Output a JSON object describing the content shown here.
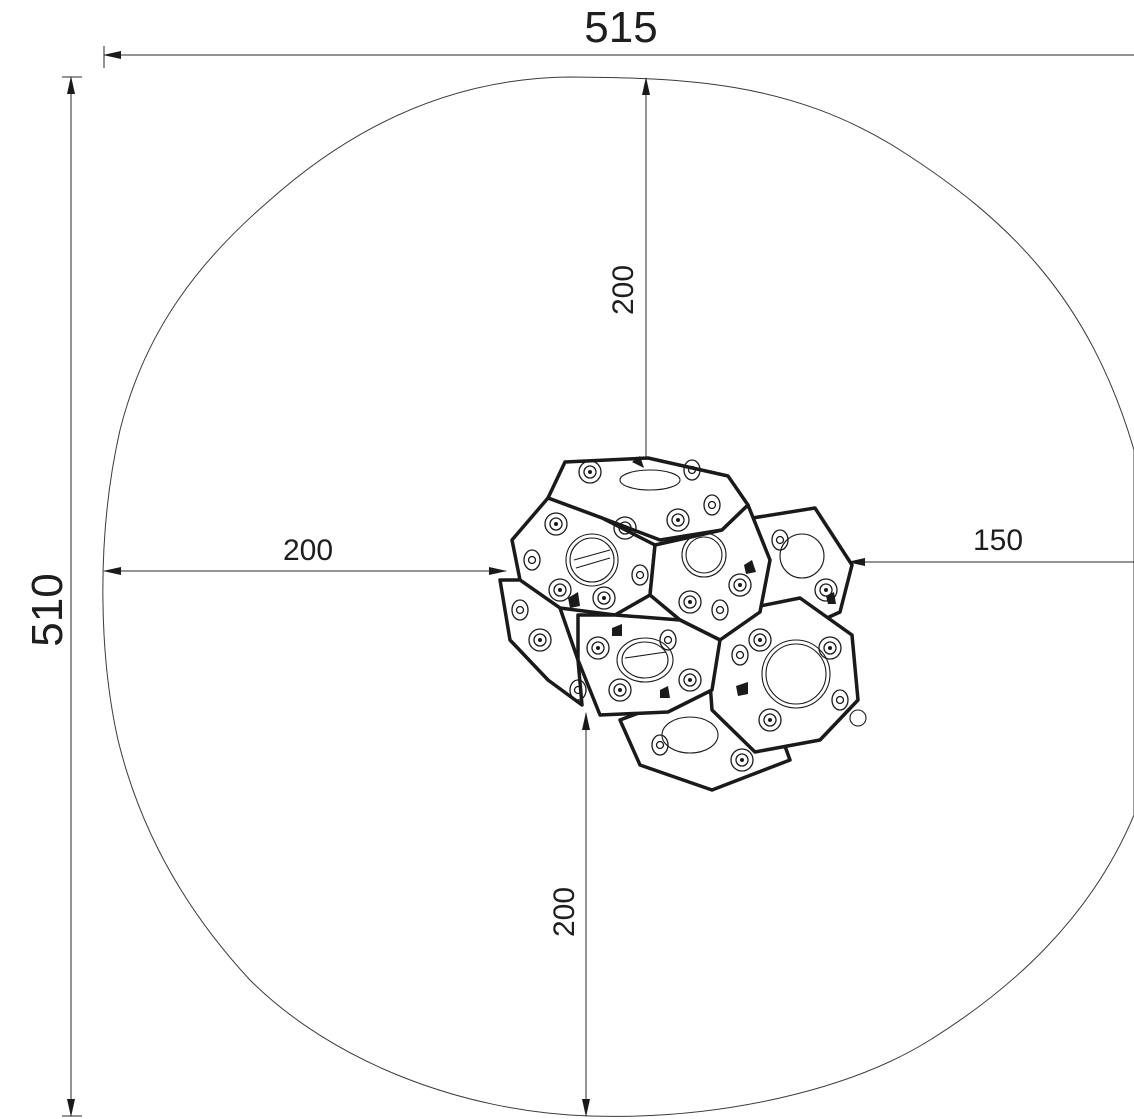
{
  "drawing": {
    "overall_width_label": "515",
    "overall_depth_label": "510",
    "top_clearance_label": "200",
    "left_clearance_label": "200",
    "right_clearance_label": "150",
    "bottom_clearance_label": "200"
  }
}
